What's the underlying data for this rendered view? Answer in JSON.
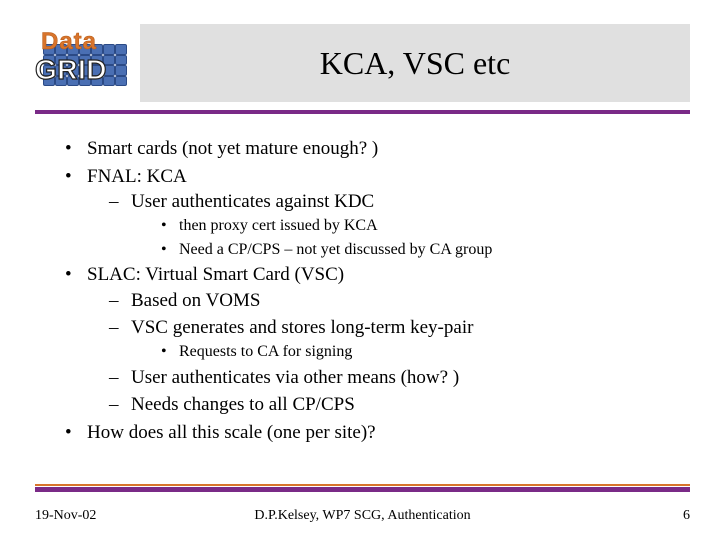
{
  "logo": {
    "topWord": "Data",
    "bottomWord": "GRID"
  },
  "title": "KCA, VSC etc",
  "colors": {
    "accent_purple": "#7a2a87",
    "accent_orange": "#d8742c",
    "title_bg": "#e0e0e0",
    "globe_blue": "#4a6fb3"
  },
  "bullets": {
    "b1": "Smart cards (not yet mature enough? )",
    "b2": "FNAL: KCA",
    "b2_1": "User authenticates against KDC",
    "b2_1_a": "then proxy cert issued by KCA",
    "b2_1_b": "Need a CP/CPS – not yet discussed by CA group",
    "b3": "SLAC: Virtual Smart Card (VSC)",
    "b3_1": "Based on VOMS",
    "b3_2": "VSC generates and stores long-term key-pair",
    "b3_2_a": "Requests to CA for signing",
    "b3_3": "User authenticates via other means (how? )",
    "b3_4": "Needs changes to all CP/CPS",
    "b4": "How does all this scale (one per site)?"
  },
  "footer": {
    "date": "19-Nov-02",
    "center": "D.P.Kelsey, WP7 SCG, Authentication",
    "page": "6"
  }
}
